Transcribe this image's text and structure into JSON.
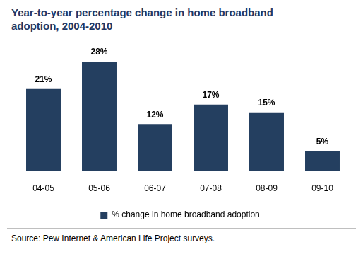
{
  "chart_data": {
    "type": "bar",
    "title": "Year-to-year percentage change in home broadband adoption, 2004-2010",
    "categories": [
      "04-05",
      "05-06",
      "06-07",
      "07-08",
      "08-09",
      "09-10"
    ],
    "series": [
      {
        "name": "% change in home broadband adoption",
        "color": "#243f60",
        "values": [
          21,
          28,
          12,
          17,
          15,
          5
        ],
        "value_labels": [
          "21%",
          "28%",
          "12%",
          "17%",
          "15%",
          "5%"
        ]
      }
    ],
    "ylim": [
      0,
      30
    ],
    "grid": false,
    "legend": "bottom",
    "data_labels": true,
    "tick_labels": "x",
    "source": "Source: Pew Internet & American Life Project surveys."
  }
}
